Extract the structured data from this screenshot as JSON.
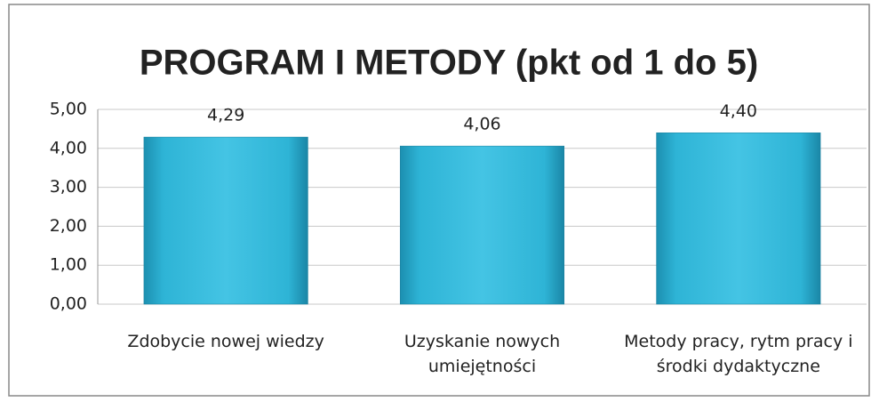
{
  "chart_data": {
    "type": "bar",
    "title": "PROGRAM I METODY (pkt od 1 do 5)",
    "categories": [
      "Zdobycie nowej wiedzy",
      "Uzyskanie nowych umiejętności",
      "Metody pracy, rytm pracy i środki dydaktyczne"
    ],
    "values": [
      4.29,
      4.06,
      4.4
    ],
    "value_labels": [
      "4,29",
      "4,06",
      "4,40"
    ],
    "color": "#2eb4d6",
    "ylim": [
      0,
      5
    ],
    "yticks": [
      {
        "value": 0,
        "label": "0,00"
      },
      {
        "value": 1,
        "label": "1,00"
      },
      {
        "value": 2,
        "label": "2,00"
      },
      {
        "value": 3,
        "label": "3,00"
      },
      {
        "value": 4,
        "label": "4,00"
      },
      {
        "value": 5,
        "label": "5,00"
      }
    ],
    "grid": true
  }
}
